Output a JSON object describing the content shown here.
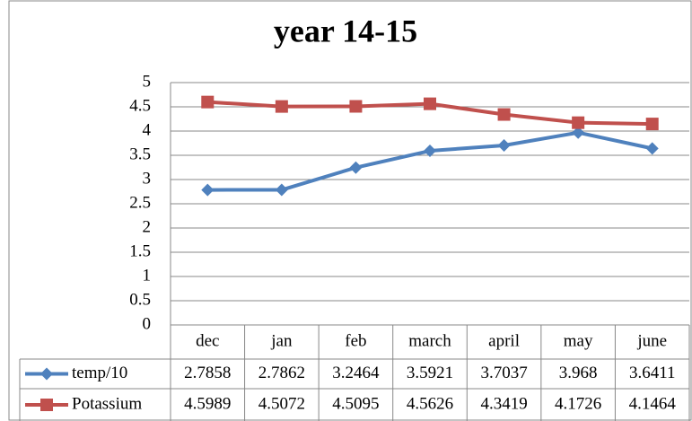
{
  "chart_data": {
    "type": "line",
    "title": "year 14-15",
    "categories": [
      "dec",
      "jan",
      "feb",
      "march",
      "april",
      "may",
      "june"
    ],
    "series": [
      {
        "name": "temp/10",
        "color": "#4f81bd",
        "marker": "diamond",
        "values": [
          2.7858,
          2.7862,
          3.2464,
          3.5921,
          3.7037,
          3.968,
          3.6411
        ]
      },
      {
        "name": "Potassium",
        "color": "#c0504d",
        "marker": "square",
        "values": [
          4.5989,
          4.5072,
          4.5095,
          4.5626,
          4.3419,
          4.1726,
          4.1464
        ]
      }
    ],
    "ylim": [
      0,
      5
    ],
    "yticks": [
      0,
      0.5,
      1,
      1.5,
      2,
      2.5,
      3,
      3.5,
      4,
      4.5,
      5
    ],
    "grid": true,
    "data_table": true
  }
}
